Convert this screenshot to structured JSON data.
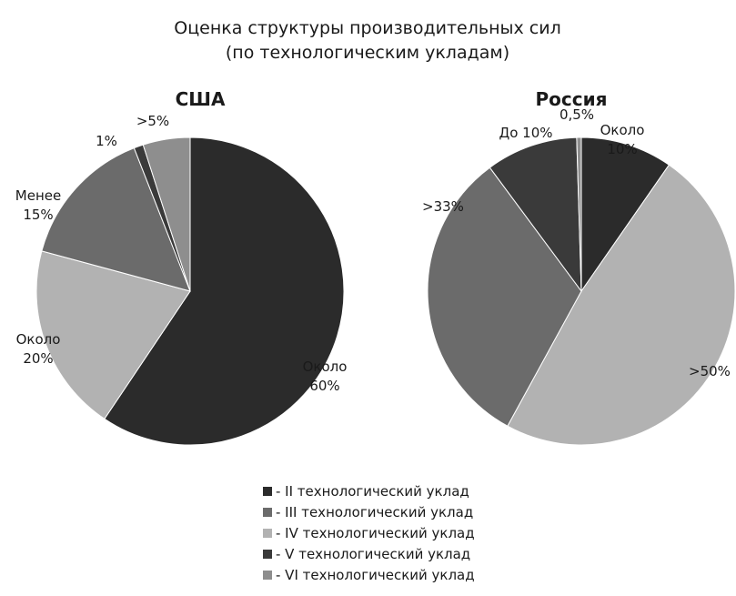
{
  "chart_data": {
    "type": "pie",
    "title_lines": [
      "Оценка структуры производительных сил",
      "(по технологическим укладам)"
    ],
    "categories": [
      "- II технологический уклад",
      "- III технологический уклад",
      "- IV технологический уклад",
      "- V технологический уклад",
      "- VI технологический уклад"
    ],
    "colors": [
      "#2b2b2b",
      "#6b6b6b",
      "#b2b2b2",
      "#3a3a3a",
      "#8e8e8e"
    ],
    "charts": [
      {
        "name": "США",
        "values": [
          60,
          15,
          20,
          1,
          5
        ],
        "labels": [
          {
            "category": 0,
            "lines": [
              "Около",
              "60%"
            ]
          },
          {
            "category": 2,
            "lines": [
              "Около",
              "20%"
            ]
          },
          {
            "category": 1,
            "lines": [
              "Менее",
              "15%"
            ]
          },
          {
            "category": 3,
            "lines": [
              "1%"
            ]
          },
          {
            "category": 4,
            "lines": [
              ">5%"
            ]
          }
        ]
      },
      {
        "name": "Россия",
        "values": [
          10,
          33,
          50,
          10,
          0.5
        ],
        "labels": [
          {
            "category": 0,
            "lines": [
              "Около",
              "10%"
            ]
          },
          {
            "category": 2,
            "lines": [
              ">50%"
            ]
          },
          {
            "category": 1,
            "lines": [
              ">33%"
            ]
          },
          {
            "category": 3,
            "lines": [
              "До 10%"
            ]
          },
          {
            "category": 4,
            "lines": [
              "0,5%"
            ]
          }
        ]
      }
    ],
    "legend_position": "bottom"
  }
}
